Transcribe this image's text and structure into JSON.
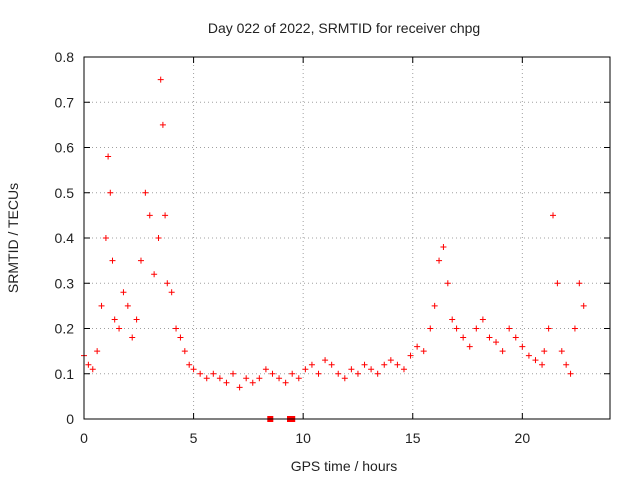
{
  "chart_data": {
    "type": "scatter",
    "title": "Day 022 of 2022, SRMTID for receiver chpg",
    "xlabel": "GPS time / hours",
    "ylabel": "SRMTID / TECUs",
    "xlim": [
      0,
      24
    ],
    "ylim": [
      0,
      0.8
    ],
    "xticks": [
      0,
      5,
      10,
      15,
      20
    ],
    "xtick_labels": [
      "0",
      "5",
      "10",
      "15",
      "20"
    ],
    "yticks": [
      0,
      0.1,
      0.2,
      0.3,
      0.4,
      0.5,
      0.6,
      0.7,
      0.8
    ],
    "ytick_labels": [
      "0",
      "0.1",
      "0.2",
      "0.3",
      "0.4",
      "0.5",
      "0.6",
      "0.7",
      "0.8"
    ],
    "grid": true,
    "marker": "plus",
    "color": "#ff0000",
    "series": [
      {
        "name": "SRMTID",
        "x": [
          0.0,
          0.2,
          0.4,
          0.6,
          0.8,
          1.0,
          1.1,
          1.2,
          1.3,
          1.4,
          1.6,
          1.8,
          2.0,
          2.2,
          2.4,
          2.6,
          2.8,
          3.0,
          3.2,
          3.4,
          3.5,
          3.6,
          3.7,
          3.8,
          4.0,
          4.2,
          4.4,
          4.6,
          4.8,
          5.0,
          5.3,
          5.6,
          5.9,
          6.2,
          6.5,
          6.8,
          7.1,
          7.4,
          7.7,
          8.0,
          8.3,
          8.6,
          8.9,
          9.2,
          9.5,
          9.8,
          10.1,
          10.4,
          10.7,
          11.0,
          11.3,
          11.6,
          11.9,
          12.2,
          12.5,
          12.8,
          13.1,
          13.4,
          13.7,
          14.0,
          14.3,
          14.6,
          14.9,
          15.2,
          15.5,
          15.8,
          16.0,
          16.2,
          16.4,
          16.6,
          16.8,
          17.0,
          17.3,
          17.6,
          17.9,
          18.2,
          18.5,
          18.8,
          19.1,
          19.4,
          19.7,
          20.0,
          20.3,
          20.6,
          20.9,
          21.0,
          21.2,
          21.4,
          21.6,
          21.8,
          22.0,
          22.2,
          22.4,
          22.6,
          22.8
        ],
        "values": [
          0.14,
          0.12,
          0.11,
          0.15,
          0.25,
          0.4,
          0.58,
          0.5,
          0.35,
          0.22,
          0.2,
          0.28,
          0.25,
          0.18,
          0.22,
          0.35,
          0.5,
          0.45,
          0.32,
          0.4,
          0.75,
          0.65,
          0.45,
          0.3,
          0.28,
          0.2,
          0.18,
          0.15,
          0.12,
          0.11,
          0.1,
          0.09,
          0.1,
          0.09,
          0.08,
          0.1,
          0.07,
          0.09,
          0.08,
          0.09,
          0.11,
          0.1,
          0.09,
          0.08,
          0.1,
          0.09,
          0.11,
          0.12,
          0.1,
          0.13,
          0.12,
          0.1,
          0.09,
          0.11,
          0.1,
          0.12,
          0.11,
          0.1,
          0.12,
          0.13,
          0.12,
          0.11,
          0.14,
          0.16,
          0.15,
          0.2,
          0.25,
          0.35,
          0.38,
          0.3,
          0.22,
          0.2,
          0.18,
          0.16,
          0.2,
          0.22,
          0.18,
          0.17,
          0.15,
          0.2,
          0.18,
          0.16,
          0.14,
          0.13,
          0.12,
          0.15,
          0.2,
          0.45,
          0.3,
          0.15,
          0.12,
          0.1,
          0.2,
          0.3,
          0.25
        ]
      }
    ],
    "outlier_squares": [
      {
        "x": 8.5,
        "y": 0.0
      },
      {
        "x": 9.4,
        "y": 0.0
      },
      {
        "x": 9.5,
        "y": 0.0
      }
    ]
  }
}
